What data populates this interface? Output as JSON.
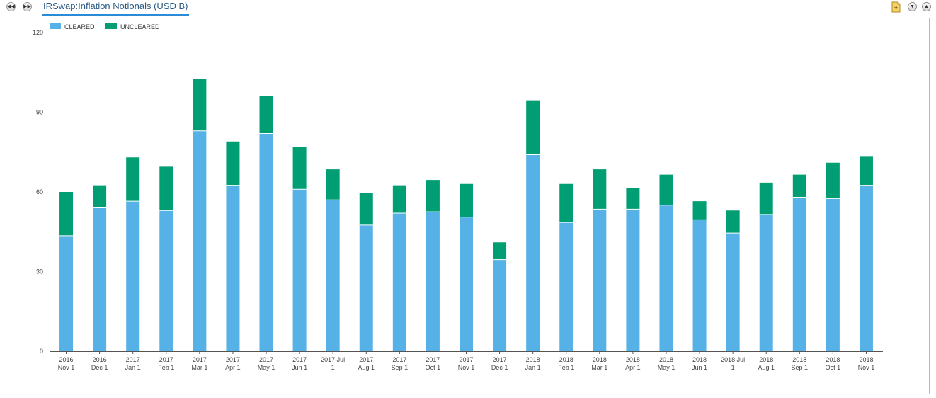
{
  "header": {
    "tab_title": "IRSwap:Inflation Notionals (USD B)",
    "nav_prev_icon": "rewind-icon",
    "nav_next_icon": "fast-forward-icon"
  },
  "toolbar": {
    "icons": [
      "export-document-icon",
      "collapse-down-icon",
      "expand-up-icon"
    ]
  },
  "colors": {
    "cleared": "#56b1e7",
    "uncleared": "#009e72",
    "tab_text": "#2b5a86",
    "tab_underline": "#2b8bd6"
  },
  "chart_data": {
    "type": "bar",
    "stacked": true,
    "categories": [
      [
        "2016",
        "Nov 1"
      ],
      [
        "2016",
        "Dec 1"
      ],
      [
        "2017",
        "Jan 1"
      ],
      [
        "2017",
        "Feb 1"
      ],
      [
        "2017",
        "Mar 1"
      ],
      [
        "2017",
        "Apr 1"
      ],
      [
        "2017",
        "May 1"
      ],
      [
        "2017",
        "Jun 1"
      ],
      [
        "2017 Jul",
        "1"
      ],
      [
        "2017",
        "Aug 1"
      ],
      [
        "2017",
        "Sep 1"
      ],
      [
        "2017",
        "Oct 1"
      ],
      [
        "2017",
        "Nov 1"
      ],
      [
        "2017",
        "Dec 1"
      ],
      [
        "2018",
        "Jan 1"
      ],
      [
        "2018",
        "Feb 1"
      ],
      [
        "2018",
        "Mar 1"
      ],
      [
        "2018",
        "Apr 1"
      ],
      [
        "2018",
        "May 1"
      ],
      [
        "2018",
        "Jun 1"
      ],
      [
        "2018 Jul",
        "1"
      ],
      [
        "2018",
        "Aug 1"
      ],
      [
        "2018",
        "Sep 1"
      ],
      [
        "2018",
        "Oct 1"
      ],
      [
        "2018",
        "Nov 1"
      ]
    ],
    "series": [
      {
        "name": "CLEARED",
        "color": "#56b1e7",
        "values": [
          43.5,
          54,
          56.5,
          53,
          83,
          62.5,
          82,
          61,
          57,
          47.5,
          52,
          52.5,
          50.5,
          34.5,
          74,
          48.5,
          53.5,
          53.5,
          55,
          49.5,
          44.5,
          51.5,
          58,
          57.5,
          62.5
        ]
      },
      {
        "name": "UNCLEARED",
        "color": "#009e72",
        "values": [
          16.5,
          8.5,
          16.5,
          16.5,
          19.5,
          16.5,
          14,
          16,
          11.5,
          12,
          10.5,
          12,
          12.5,
          6.5,
          20.5,
          14.5,
          15,
          8,
          11.5,
          7,
          8.5,
          12,
          8.5,
          13.5,
          11
        ]
      }
    ],
    "yticks": [
      "0",
      "30",
      "60",
      "90",
      "120"
    ],
    "ylim": [
      0,
      120
    ],
    "legend_position": "top-left",
    "grid": false,
    "title": "",
    "xlabel": "",
    "ylabel": ""
  }
}
